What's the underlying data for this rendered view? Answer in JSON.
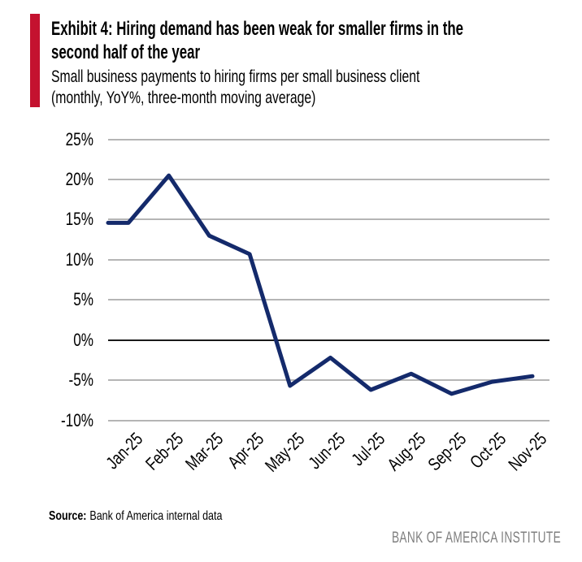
{
  "header": {
    "exhibit_title_line1": "Exhibit 4: Hiring demand has been weak for smaller firms in the",
    "exhibit_title_line2": "second half of the year",
    "subtitle_line1": "Small business payments to hiring firms per small business client",
    "subtitle_line2": "(monthly, YoY%, three-month moving average)",
    "accent_color": "#c4122f"
  },
  "chart_data": {
    "type": "line",
    "title": "Exhibit 4: Hiring demand has been weak for smaller firms in the second half of the year",
    "subtitle": "Small business payments to hiring firms per small business client (monthly, YoY%, three-month moving average)",
    "categories": [
      "Jan-25",
      "Feb-25",
      "Mar-25",
      "Apr-25",
      "May-25",
      "Jun-25",
      "Jul-25",
      "Aug-25",
      "Sep-25",
      "Oct-25",
      "Nov-25"
    ],
    "series": [
      {
        "values": [
          14.6,
          20.5,
          13.0,
          10.7,
          -5.7,
          -2.2,
          -6.2,
          -4.2,
          -6.7,
          -5.2,
          -4.5
        ]
      }
    ],
    "unit": "%",
    "ylim": [
      -10,
      25
    ],
    "yticks": [
      25,
      20,
      15,
      10,
      5,
      0,
      -5,
      -10
    ],
    "ytick_labels": [
      "25%",
      "20%",
      "15%",
      "10%",
      "5%",
      "0%",
      "-5%",
      "-10%"
    ],
    "grid": true,
    "legend": "none",
    "line_color": "#142a6b",
    "gridline_color": "#b5b5b5",
    "zero_line_color": "#1a1a1a",
    "line_starts_at_plot_left_edge": true
  },
  "footer": {
    "source_label": "Source:",
    "source_text": "Bank of America internal data",
    "brand_text": "BANK OF AMERICA INSTITUTE",
    "brand_color": "#7f7f7f"
  }
}
